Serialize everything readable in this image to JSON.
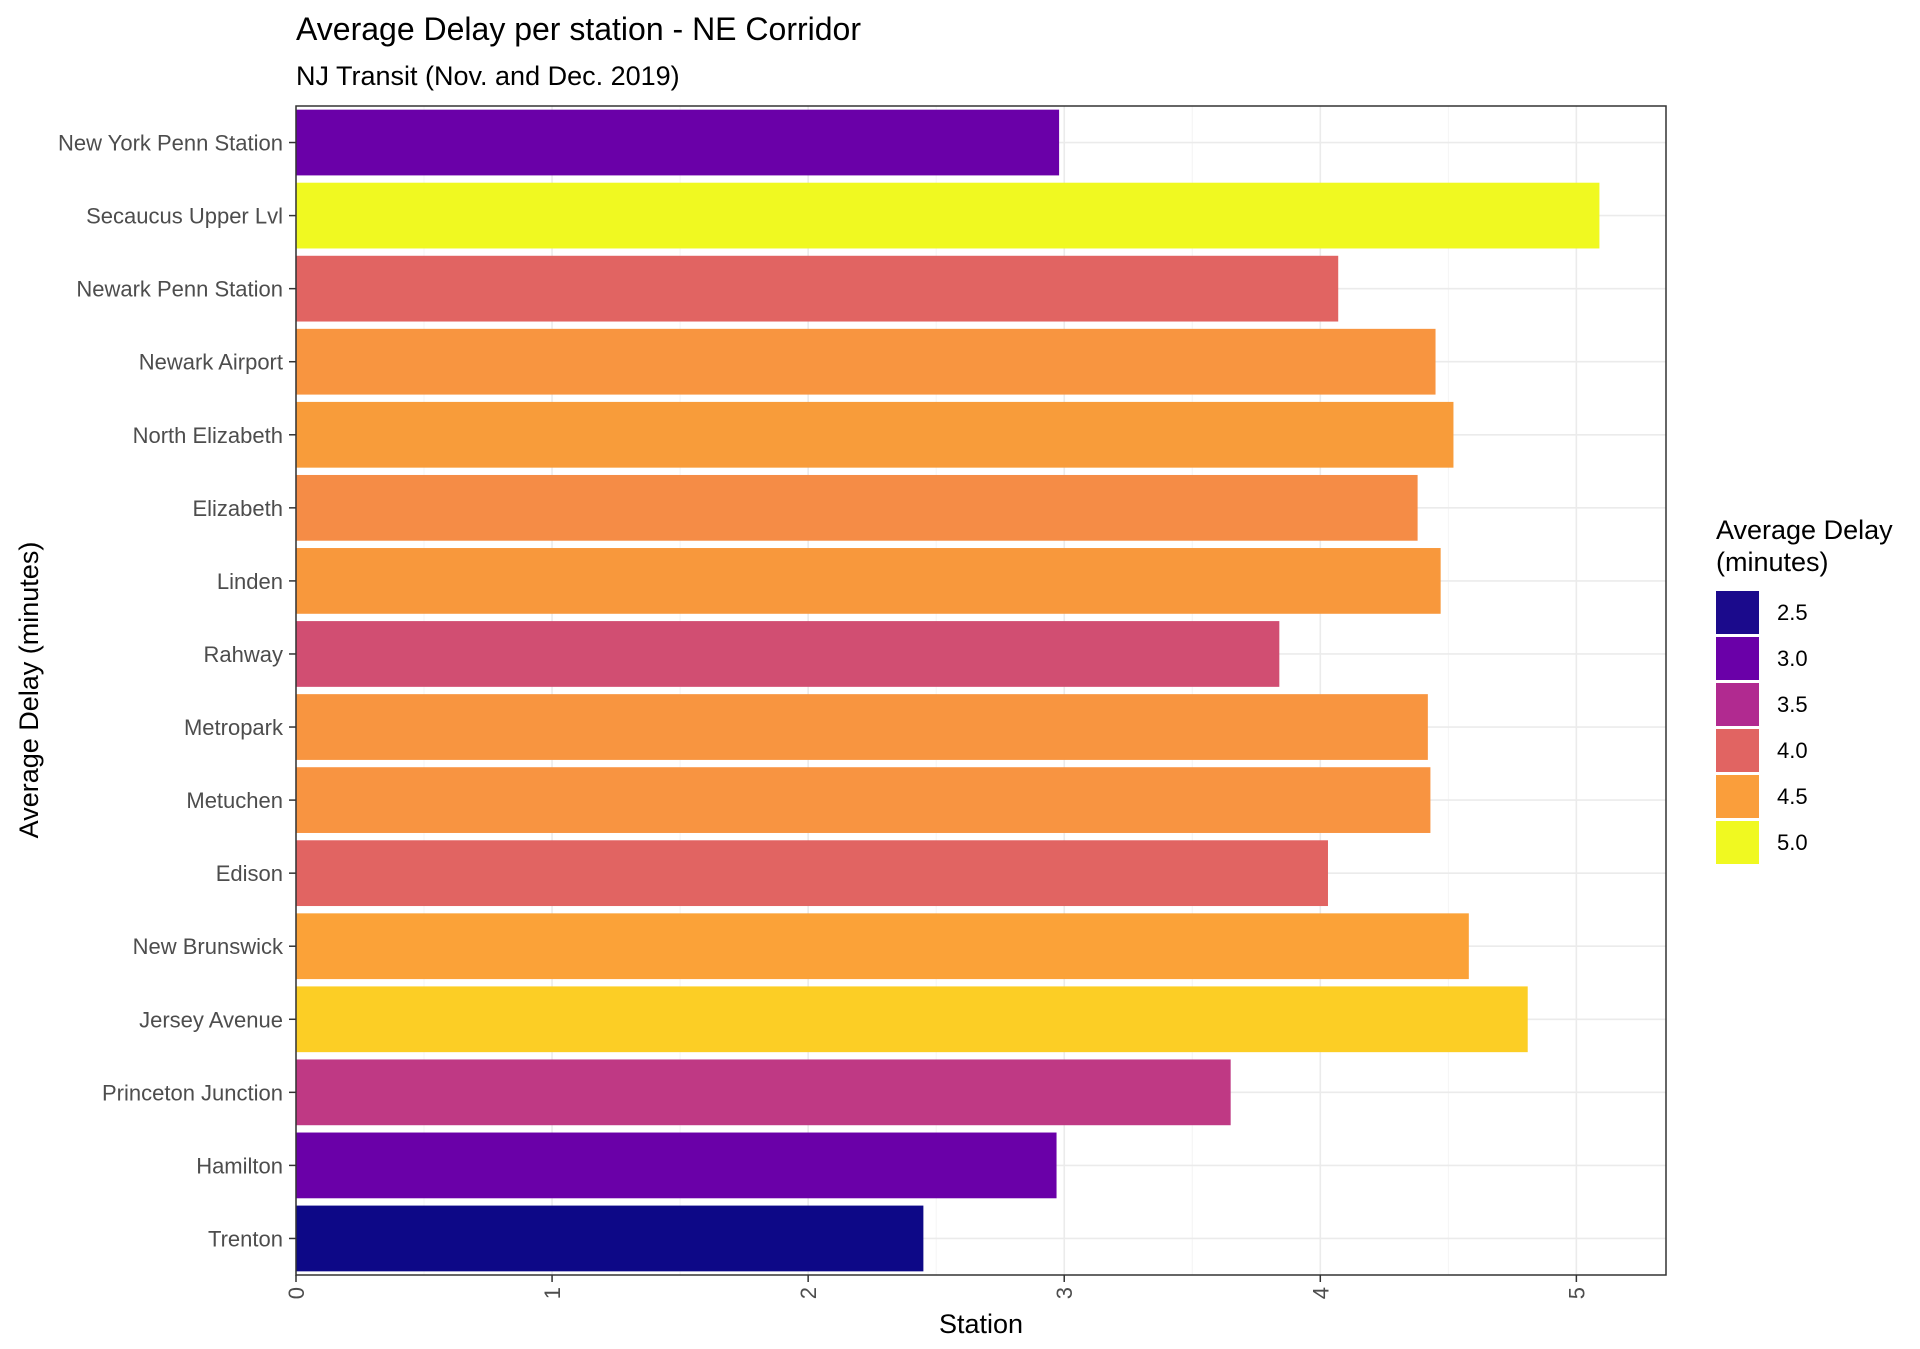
{
  "chart_data": {
    "type": "bar",
    "orientation": "horizontal",
    "title": "Average Delay per station - NE Corridor",
    "subtitle": "NJ Transit (Nov. and Dec. 2019)",
    "xlabel": "Station",
    "ylabel": "Average Delay (minutes)",
    "xlim": [
      0,
      5.35
    ],
    "xticks": [
      "0",
      "1",
      "2",
      "3",
      "4",
      "5"
    ],
    "grid": true,
    "categories": [
      "New York Penn Station",
      "Secaucus Upper Lvl",
      "Newark Penn Station",
      "Newark Airport",
      "North Elizabeth",
      "Elizabeth",
      "Linden",
      "Rahway",
      "Metropark",
      "Metuchen",
      "Edison",
      "New Brunswick",
      "Jersey Avenue",
      "Princeton Junction",
      "Hamilton",
      "Trenton"
    ],
    "values": [
      2.98,
      5.09,
      4.07,
      4.45,
      4.52,
      4.38,
      4.47,
      3.84,
      4.42,
      4.43,
      4.03,
      4.58,
      4.81,
      3.65,
      2.97,
      2.45
    ],
    "colors": [
      "#6A00A8",
      "#F0F921",
      "#E16462",
      "#F89540",
      "#F89C3A",
      "#F58C46",
      "#F8983C",
      "#D14E72",
      "#F89540",
      "#F89441",
      "#E16462",
      "#FBA238",
      "#FCCE25",
      "#BF3984",
      "#6A00A8",
      "#0D0887"
    ],
    "legend": {
      "title": [
        "Average Delay",
        "(minutes)"
      ],
      "position": "right",
      "items": [
        {
          "label": "2.5",
          "color": "#1B0A8C"
        },
        {
          "label": "3.0",
          "color": "#6A00A8"
        },
        {
          "label": "3.5",
          "color": "#B12A90"
        },
        {
          "label": "4.0",
          "color": "#E16462"
        },
        {
          "label": "4.5",
          "color": "#FA9E3B"
        },
        {
          "label": "5.0",
          "color": "#F0F921"
        }
      ]
    }
  }
}
